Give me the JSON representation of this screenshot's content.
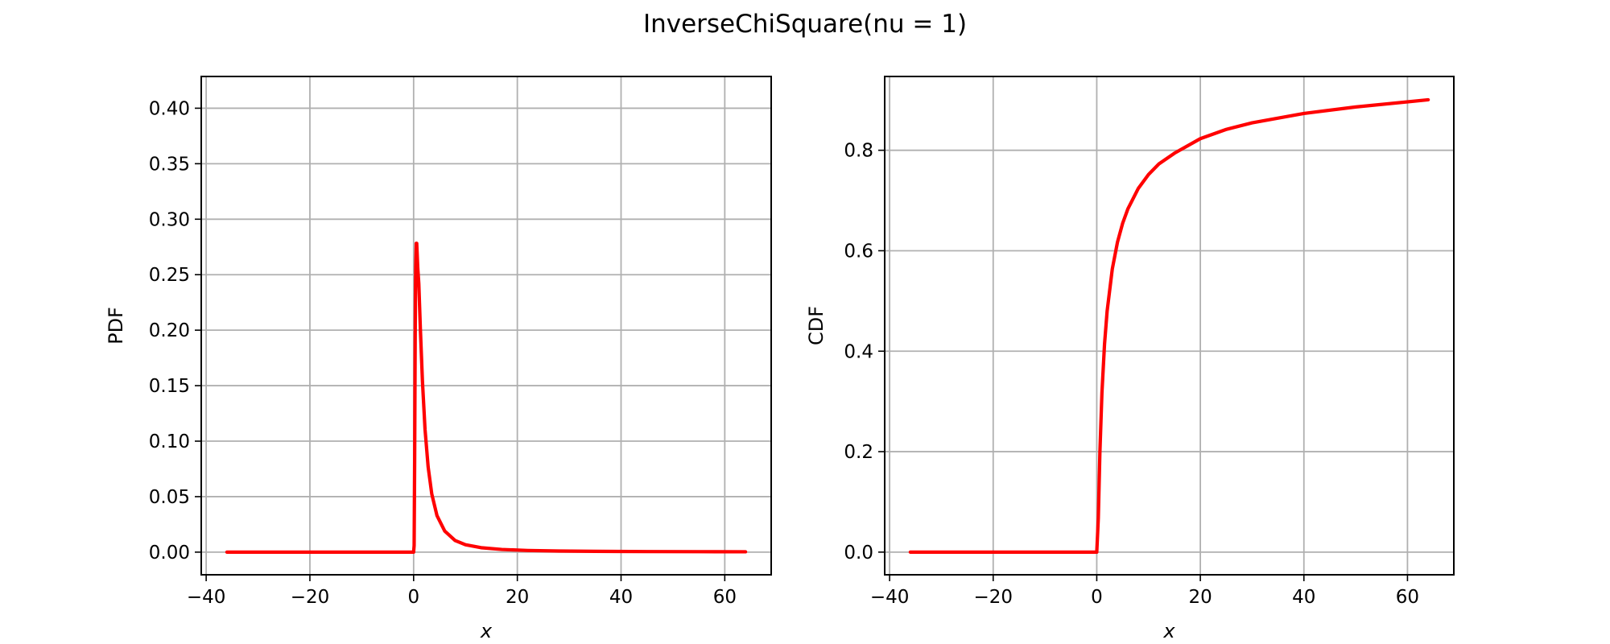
{
  "figure": {
    "title": "InverseChiSquare(nu = 1)"
  },
  "colors": {
    "series": "#ff0000",
    "grid": "#b0b0b0",
    "axes": "#000000"
  },
  "chart_data": [
    {
      "type": "line",
      "xlabel": "x",
      "ylabel": "PDF",
      "xlim": [
        -40.95,
        68.95
      ],
      "ylim": [
        -0.0204,
        0.4286
      ],
      "xticks": [
        -40,
        -20,
        0,
        20,
        40,
        60
      ],
      "xtick_labels": [
        "−40",
        "−20",
        "0",
        "20",
        "40",
        "60"
      ],
      "yticks": [
        0.0,
        0.05,
        0.1,
        0.15,
        0.2,
        0.25,
        0.3,
        0.35,
        0.4
      ],
      "ytick_labels": [
        "0.00",
        "0.05",
        "0.10",
        "0.15",
        "0.20",
        "0.25",
        "0.30",
        "0.35",
        "0.40"
      ],
      "grid": true,
      "legend": "none",
      "series": [
        {
          "color": "#ff0000",
          "x": [
            -36,
            -10,
            -1,
            -0.3,
            0.0,
            0.1,
            0.2,
            0.3,
            0.35,
            0.4,
            0.5,
            0.6,
            0.8,
            1.0,
            1.3,
            1.7,
            2.2,
            2.8,
            3.5,
            4.5,
            6,
            8,
            10,
            13,
            17,
            22,
            28,
            35,
            45,
            55,
            64
          ],
          "y": [
            0,
            0,
            0,
            0,
            0,
            0.0059,
            0.0818,
            0.1898,
            0.2313,
            0.257,
            0.2783,
            0.2782,
            0.2561,
            0.242,
            0.2017,
            0.1542,
            0.1107,
            0.0768,
            0.0524,
            0.033,
            0.019,
            0.0105,
            0.0067,
            0.004,
            0.0024,
            0.0015,
            0.001,
            0.0007,
            0.0005,
            0.0004,
            0.0003
          ]
        }
      ]
    },
    {
      "type": "line",
      "xlabel": "x",
      "ylabel": "CDF",
      "xlim": [
        -40.95,
        68.95
      ],
      "ylim": [
        -0.0451,
        0.9469
      ],
      "xticks": [
        -40,
        -20,
        0,
        20,
        40,
        60
      ],
      "xtick_labels": [
        "−40",
        "−20",
        "0",
        "20",
        "40",
        "60"
      ],
      "yticks": [
        0.0,
        0.2,
        0.4,
        0.6,
        0.8
      ],
      "ytick_labels": [
        "0.0",
        "0.2",
        "0.4",
        "0.6",
        "0.8"
      ],
      "grid": true,
      "legend": "none",
      "series": [
        {
          "color": "#ff0000",
          "x": [
            -36,
            -10,
            -1,
            -0.3,
            0.0,
            0.3,
            0.6,
            1.0,
            1.5,
            2,
            3,
            4,
            5,
            6,
            8,
            10,
            12,
            15,
            20,
            25,
            30,
            40,
            50,
            64
          ],
          "y": [
            0,
            0,
            0,
            0,
            0,
            0.0679,
            0.197,
            0.3173,
            0.4142,
            0.4795,
            0.5637,
            0.6171,
            0.6547,
            0.6831,
            0.7237,
            0.7518,
            0.7728,
            0.7941,
            0.8231,
            0.8415,
            0.8547,
            0.8733,
            0.8862,
            0.9005
          ]
        }
      ]
    }
  ]
}
